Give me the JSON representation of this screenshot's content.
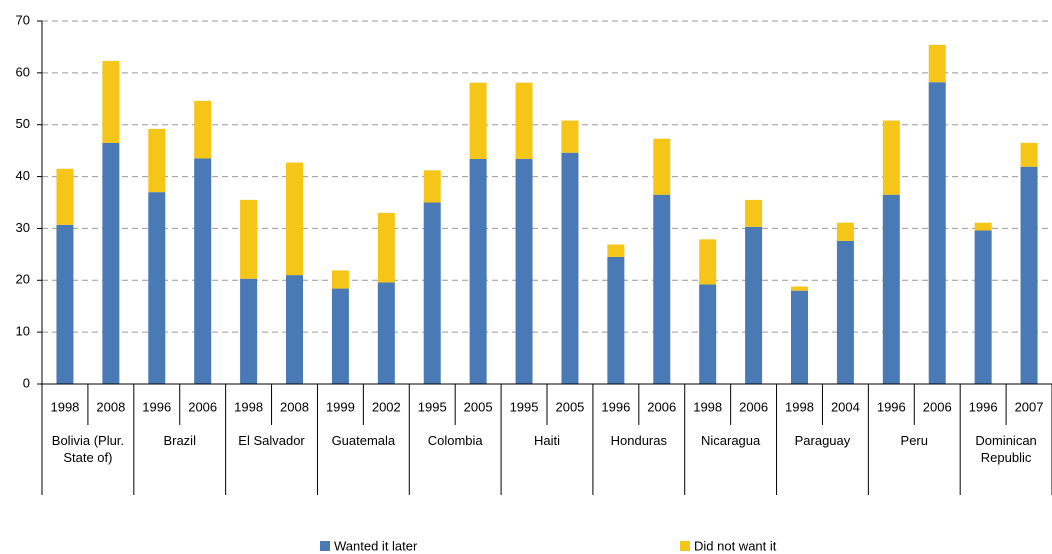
{
  "chart_data": {
    "type": "stacked_bar",
    "categories": [
      "1998",
      "2008",
      "1996",
      "2006",
      "1998",
      "2008",
      "1999",
      "2002",
      "1995",
      "2005",
      "1995",
      "2005",
      "1996",
      "2006",
      "1998",
      "2006",
      "1998",
      "2004",
      "1996",
      "2006",
      "1996",
      "2007"
    ],
    "group_labels": [
      "Bolivia (Plur. State of)",
      "Brazil",
      "El Salvador",
      "Guatemala",
      "Colombia",
      "Haiti",
      "Honduras",
      "Nicaragua",
      "Paraguay",
      "Peru",
      "Dominican Republic"
    ],
    "series": [
      {
        "name": "Wanted it later",
        "color": "#4a7ab5",
        "values": [
          30.7,
          46.5,
          37,
          43.5,
          20.3,
          21,
          18.4,
          19.6,
          35,
          43.4,
          43.4,
          44.6,
          24.5,
          36.5,
          19.2,
          30.3,
          18,
          27.6,
          36.5,
          58.2,
          29.6,
          41.9
        ]
      },
      {
        "name": "Did not want it",
        "color": "#f5c518",
        "values": [
          10.8,
          15.8,
          12.2,
          11.1,
          15.2,
          21.7,
          3.5,
          13.4,
          6.2,
          14.7,
          14.7,
          6.2,
          2.4,
          10.8,
          8.7,
          5.2,
          0.8,
          3.5,
          14.3,
          7.2,
          1.5,
          4.6
        ]
      }
    ],
    "ylim": [
      0,
      70
    ],
    "yticks": [
      0,
      10,
      20,
      30,
      40,
      50,
      60,
      70
    ],
    "grid": true
  }
}
